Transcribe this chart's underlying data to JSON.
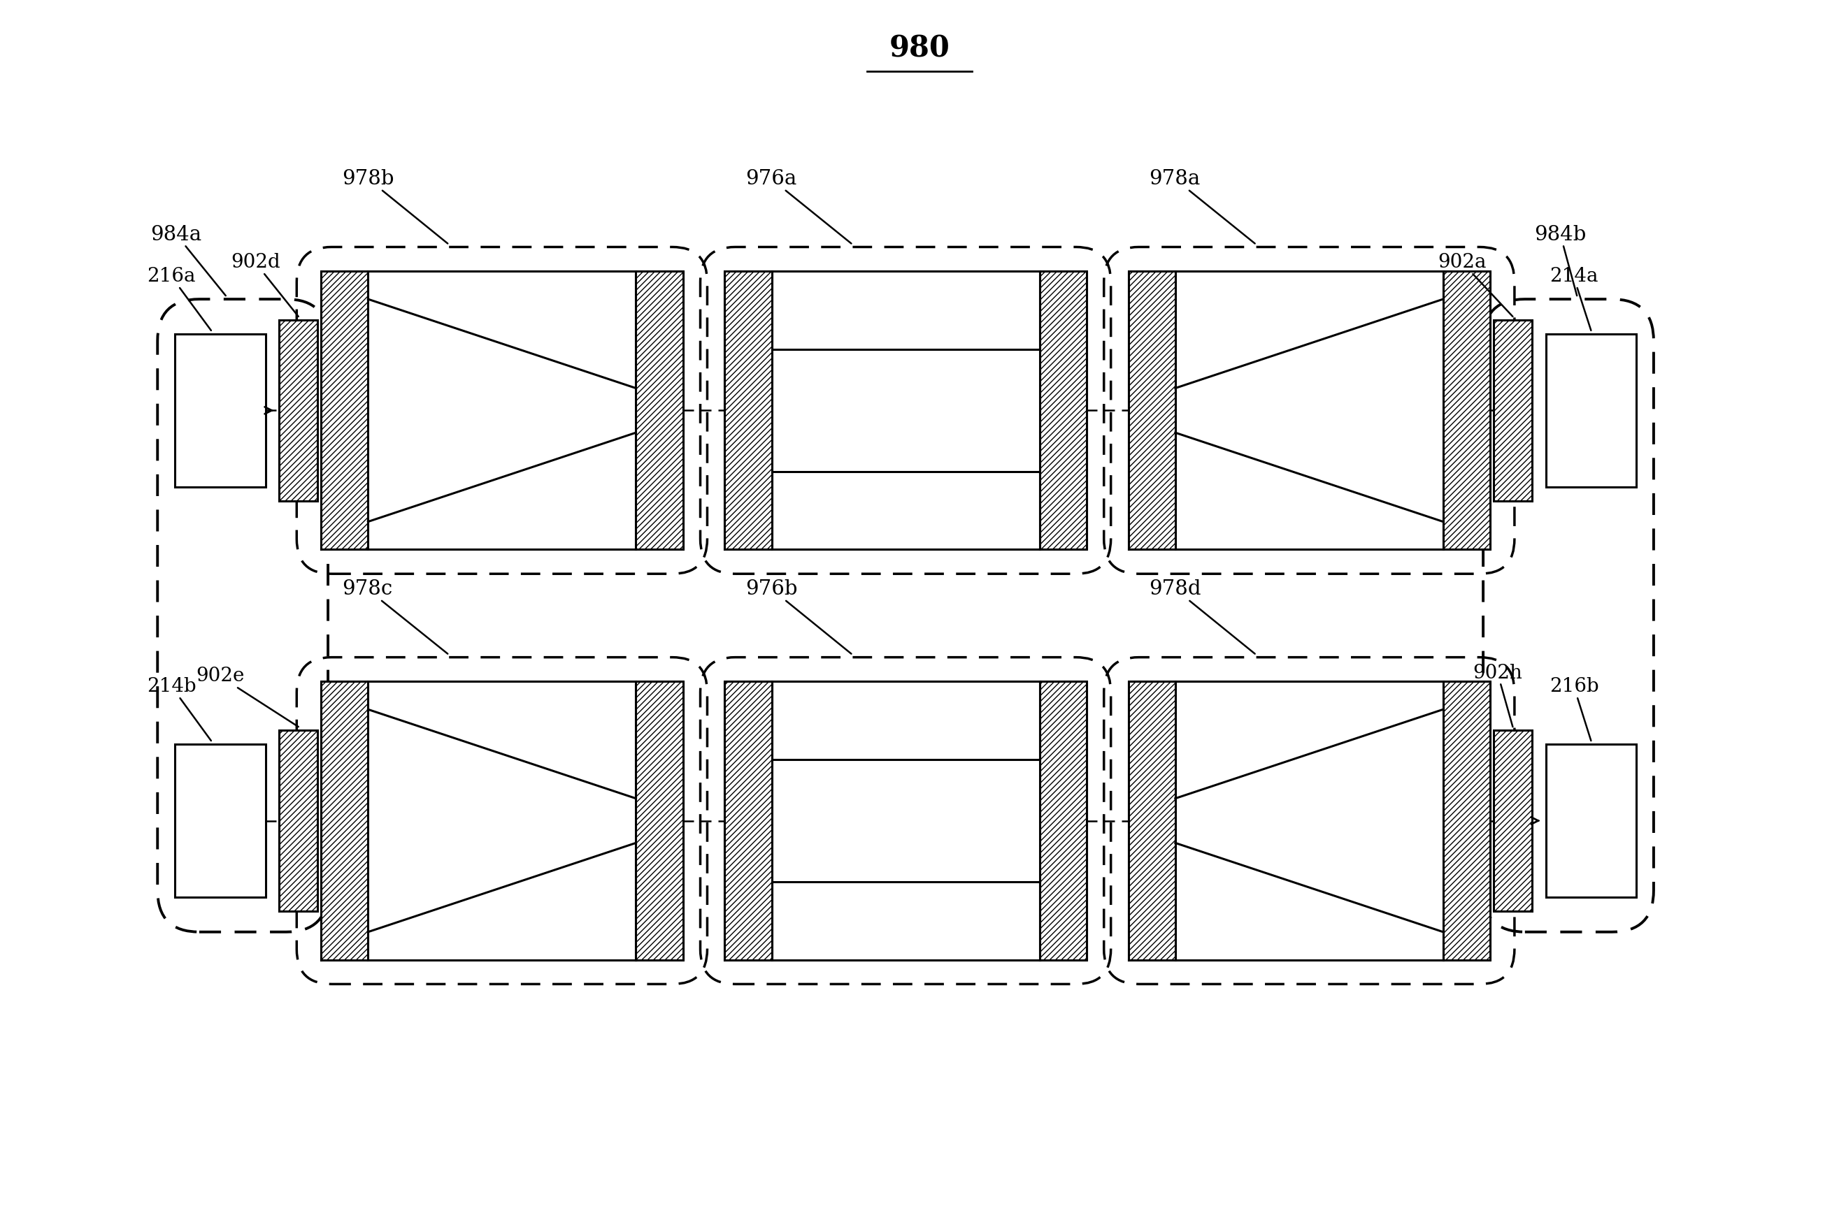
{
  "title": "980",
  "bg_color": "#ffffff",
  "fig_width": 26.3,
  "fig_height": 17.36,
  "labels": {
    "title": "980",
    "top_left_box": "984a",
    "top_right_box": "984b",
    "top_row_left": "978b",
    "top_row_center": "976a",
    "top_row_right": "978a",
    "bot_row_left": "978c",
    "bot_row_center": "976b",
    "bot_row_right": "978d",
    "tl_fiber": "216a",
    "tl_conn": "902d",
    "tr_conn": "902a",
    "tr_fiber": "214a",
    "bl_fiber": "214b",
    "bl_conn": "902e",
    "br_conn": "902h",
    "br_fiber": "216b"
  }
}
